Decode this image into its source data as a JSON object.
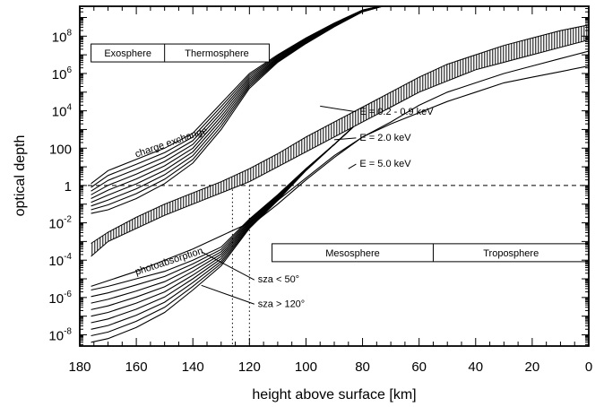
{
  "chart_data": {
    "type": "line",
    "title": "",
    "xlabel": "height above surface  [km]",
    "ylabel": "optical depth",
    "x_axis": {
      "min": 180,
      "max": 0,
      "reversed": true,
      "ticks": [
        180,
        160,
        140,
        120,
        100,
        80,
        60,
        40,
        20,
        0
      ]
    },
    "y_axis": {
      "scale": "log",
      "min_exp": -8.6,
      "max_exp": 9.6,
      "ticks": [
        {
          "exp": -8,
          "base": "10",
          "sup": "-8"
        },
        {
          "exp": -6,
          "base": "10",
          "sup": "-6"
        },
        {
          "exp": -4,
          "base": "10",
          "sup": "-4"
        },
        {
          "exp": -2,
          "base": "10",
          "sup": "-2"
        },
        {
          "exp": 0,
          "base": "1",
          "sup": ""
        },
        {
          "exp": 2,
          "base": "100",
          "sup": ""
        },
        {
          "exp": 4,
          "base": "10",
          "sup": "4"
        },
        {
          "exp": 6,
          "base": "10",
          "sup": "6"
        },
        {
          "exp": 8,
          "base": "10",
          "sup": "8"
        }
      ]
    },
    "reference_line": {
      "y": 1,
      "style": "dashed"
    },
    "vertical_markers": [
      {
        "x": 126,
        "style": "dotted"
      },
      {
        "x": 120,
        "style": "dotted"
      }
    ],
    "series": [
      {
        "kind": "charge_exchange",
        "family_count": 9,
        "x": [
          176,
          170,
          160,
          150,
          140,
          130,
          120,
          110,
          100,
          90,
          80,
          68
        ],
        "y_log10_top": [
          0.1,
          0.8,
          1.4,
          2.0,
          2.8,
          4.4,
          6.0,
          7.0,
          7.9,
          8.7,
          9.4,
          9.8
        ],
        "y_log10_bottom": [
          -1.5,
          -1.3,
          -0.7,
          0.1,
          1.2,
          3.0,
          5.2,
          6.6,
          7.6,
          8.5,
          9.3,
          9.8
        ]
      },
      {
        "kind": "photoabsorption",
        "family_count": 9,
        "x": [
          176,
          170,
          160,
          150,
          140,
          130,
          120,
          110,
          100,
          90,
          80,
          68
        ],
        "y_log10_top": [
          -5.6,
          -5.4,
          -5.0,
          -4.6,
          -4.0,
          -3.3,
          -1.8,
          -0.5,
          0.9,
          2.2,
          3.6,
          5.0
        ],
        "y_log10_bottom": [
          -8.4,
          -8.2,
          -7.6,
          -6.8,
          -5.6,
          -4.3,
          -2.3,
          -0.8,
          0.8,
          2.2,
          3.6,
          5.0
        ]
      },
      {
        "name": "E = 0.2 - 0.9 keV",
        "kind": "band",
        "x": [
          176,
          170,
          160,
          150,
          140,
          130,
          120,
          110,
          100,
          90,
          80,
          70,
          60,
          50,
          40,
          30,
          20,
          10,
          0
        ],
        "y_log10_lower": [
          -3.8,
          -3.0,
          -2.3,
          -1.6,
          -1.0,
          -0.4,
          0.2,
          1.0,
          1.8,
          2.6,
          3.4,
          4.2,
          5.0,
          5.6,
          6.2,
          6.6,
          7.0,
          7.4,
          7.8
        ],
        "y_log10_upper": [
          -3.1,
          -2.5,
          -1.7,
          -1.0,
          -0.4,
          0.2,
          0.9,
          1.7,
          2.6,
          3.4,
          4.2,
          5.0,
          5.8,
          6.5,
          7.0,
          7.5,
          7.9,
          8.3,
          8.6
        ]
      },
      {
        "name": "E = 2.0 keV",
        "x": [
          176,
          170,
          160,
          150,
          140,
          130,
          120,
          110,
          100,
          90,
          80,
          70,
          60,
          50,
          40,
          30,
          20,
          10,
          0
        ],
        "y_log10": [
          -5.4,
          -5.1,
          -4.6,
          -4.0,
          -3.4,
          -2.7,
          -2.0,
          -0.8,
          0.4,
          1.6,
          2.6,
          3.4,
          4.3,
          5.0,
          5.5,
          6.0,
          6.4,
          6.8,
          7.2
        ]
      },
      {
        "name": "E = 5.0 keV",
        "x": [
          120,
          110,
          100,
          90,
          80,
          70,
          60,
          50,
          40,
          30,
          20,
          10,
          0
        ],
        "y_log10": [
          -2.2,
          -1.0,
          0.3,
          1.5,
          2.6,
          3.3,
          3.9,
          4.5,
          5.0,
          5.5,
          5.8,
          6.1,
          6.4
        ]
      }
    ],
    "annotations": [
      {
        "text": "charge exchange",
        "x": 160,
        "y_log10": 1.5
      },
      {
        "text": "photoabsorption",
        "x": 160,
        "y_log10": -4.8
      },
      {
        "text": "E = 0.2 - 0.9 keV",
        "x": 81,
        "y_log10": 3.8
      },
      {
        "text": "E = 2.0 keV",
        "x": 81,
        "y_log10": 2.4
      },
      {
        "text": "E = 5.0 keV",
        "x": 81,
        "y_log10": 1.0
      },
      {
        "text": "sza < 50°",
        "x": 117,
        "y_log10": -5.2
      },
      {
        "text": "sza > 120°",
        "x": 117,
        "y_log10": -6.5
      }
    ],
    "region_boxes": [
      {
        "labels": [
          "Exosphere",
          "Thermosphere"
        ],
        "x_start": 176,
        "x_split": 150,
        "x_end": 113,
        "y_log10_center": 7.1
      },
      {
        "labels": [
          "Mesosphere",
          "Troposphere"
        ],
        "x_start": 112,
        "x_split": 55,
        "x_end": 0,
        "y_log10_center": -3.6
      }
    ]
  }
}
